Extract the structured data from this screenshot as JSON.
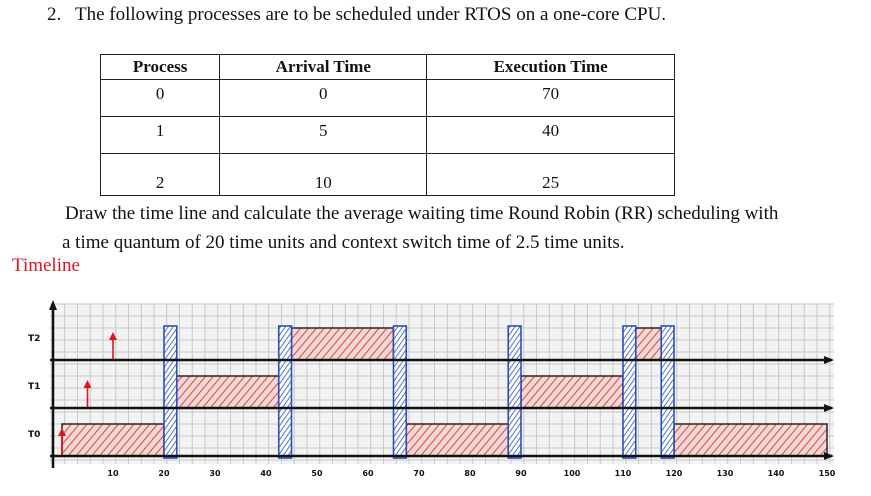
{
  "question": {
    "number": "2.",
    "text": "The following processes are to be scheduled under RTOS on a one-core CPU."
  },
  "table": {
    "headers": [
      "Process",
      "Arrival Time",
      "Execution Time"
    ],
    "rows": [
      [
        "0",
        "0",
        "70"
      ],
      [
        "1",
        "5",
        "40"
      ],
      [
        "2",
        "10",
        "25"
      ]
    ]
  },
  "instructions": {
    "line1": "Draw the time line and calculate the average waiting time  Round Robin (RR) scheduling with",
    "line2": "a time quantum of 20 time units and context switch time of 2.5 time units."
  },
  "timeline_label": "Timeline",
  "timeline_chart": {
    "rows": [
      "T2",
      "T1",
      "T0"
    ],
    "ticks": [
      "10",
      "20",
      "30",
      "40",
      "50",
      "60",
      "70",
      "80",
      "90",
      "100",
      "110",
      "120",
      "130",
      "140",
      "150"
    ],
    "arrivals": [
      {
        "row": "T0",
        "time": 0
      },
      {
        "row": "T1",
        "time": 5
      },
      {
        "row": "T2",
        "time": 10
      }
    ],
    "run_segments": [
      {
        "row": "T0",
        "start": 0,
        "end": 20
      },
      {
        "row": "T1",
        "start": 22.5,
        "end": 42.5
      },
      {
        "row": "T2",
        "start": 45,
        "end": 65
      },
      {
        "row": "T0",
        "start": 67.5,
        "end": 87.5
      },
      {
        "row": "T1",
        "start": 90,
        "end": 110
      },
      {
        "row": "T2",
        "start": 112.5,
        "end": 117.5
      },
      {
        "row": "T0",
        "start": 120,
        "end": 150
      }
    ],
    "context_switches": [
      20,
      42.5,
      65,
      87.5,
      110,
      117.5
    ],
    "colors": {
      "hatch": "#d9534f",
      "fill": "#f2c6c4",
      "switch": "#2a4fc0",
      "arrival": "#e0141e",
      "grid": "#c8c8c8",
      "axis": "#111111"
    }
  }
}
